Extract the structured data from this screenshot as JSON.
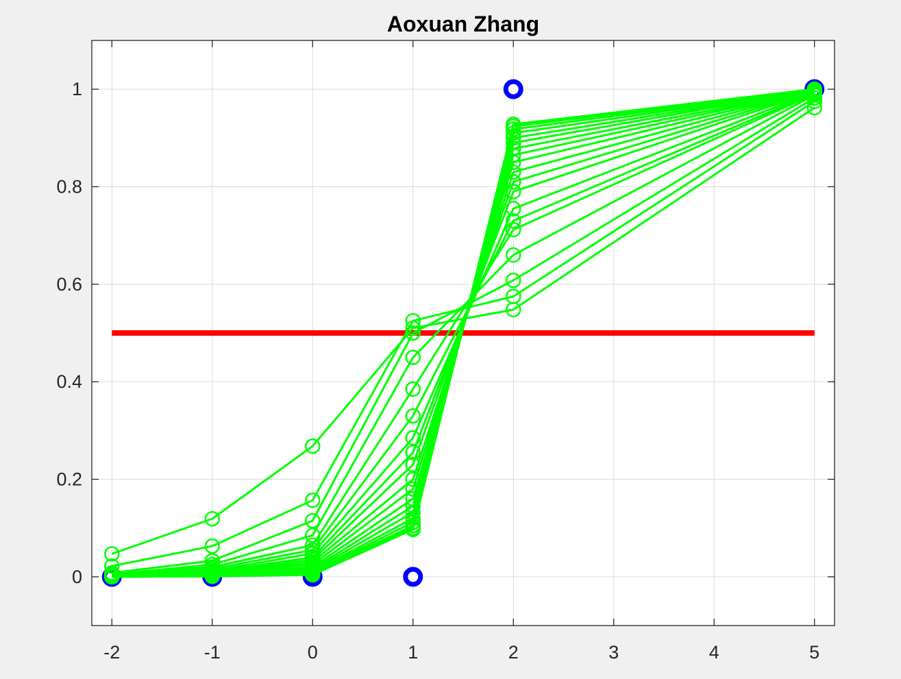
{
  "title": "Aoxuan Zhang",
  "chart_data": {
    "type": "line",
    "title": "Aoxuan Zhang",
    "xlabel": "",
    "ylabel": "",
    "xlim": [
      -2.2,
      5.2
    ],
    "ylim": [
      -0.1,
      1.1
    ],
    "grid": true,
    "x": [
      -2,
      -1,
      0,
      1,
      2,
      5
    ],
    "x_ticks": [
      "-2",
      "-1",
      "0",
      "1",
      "2",
      "3",
      "4",
      "5"
    ],
    "y_ticks": [
      "0",
      "0.2",
      "0.4",
      "0.6",
      "0.8",
      "1"
    ],
    "threshold": {
      "y": 0.5,
      "x_range": [
        -2,
        5
      ],
      "color": "#ff0000"
    },
    "targets": {
      "color": "#0000ff",
      "points": [
        [
          -2,
          0
        ],
        [
          -1,
          0
        ],
        [
          0,
          0
        ],
        [
          1,
          0
        ],
        [
          2,
          1
        ],
        [
          5,
          1
        ]
      ]
    },
    "series_color": "#00ff00",
    "series": [
      {
        "values": [
          0.047,
          0.119,
          0.268,
          0.51,
          0.548,
          0.962
        ]
      },
      {
        "values": [
          0.022,
          0.063,
          0.157,
          0.525,
          0.575,
          0.975
        ]
      },
      {
        "values": [
          0.008,
          0.033,
          0.115,
          0.5,
          0.608,
          0.982
        ]
      },
      {
        "values": [
          0.005,
          0.025,
          0.085,
          0.45,
          0.66,
          0.988
        ]
      },
      {
        "values": [
          0.004,
          0.02,
          0.065,
          0.385,
          0.712,
          0.99
        ]
      },
      {
        "values": [
          0.003,
          0.016,
          0.055,
          0.33,
          0.73,
          0.992
        ]
      },
      {
        "values": [
          0.002,
          0.012,
          0.048,
          0.285,
          0.755,
          0.994
        ]
      },
      {
        "values": [
          0.002,
          0.01,
          0.04,
          0.255,
          0.79,
          0.995
        ]
      },
      {
        "values": [
          0.001,
          0.008,
          0.035,
          0.23,
          0.81,
          0.996
        ]
      },
      {
        "values": [
          0.001,
          0.007,
          0.03,
          0.2,
          0.83,
          0.997
        ]
      },
      {
        "values": [
          0.001,
          0.006,
          0.025,
          0.18,
          0.85,
          0.997
        ]
      },
      {
        "values": [
          0.001,
          0.005,
          0.02,
          0.16,
          0.865,
          0.998
        ]
      },
      {
        "values": [
          0.001,
          0.004,
          0.016,
          0.145,
          0.878,
          0.998
        ]
      },
      {
        "values": [
          0.0,
          0.003,
          0.013,
          0.132,
          0.89,
          0.999
        ]
      },
      {
        "values": [
          0.0,
          0.003,
          0.01,
          0.12,
          0.9,
          0.999
        ]
      },
      {
        "values": [
          0.0,
          0.002,
          0.008,
          0.112,
          0.91,
          0.999
        ]
      },
      {
        "values": [
          0.0,
          0.002,
          0.006,
          0.105,
          0.918,
          0.999
        ]
      },
      {
        "values": [
          0.0,
          0.001,
          0.005,
          0.1,
          0.924,
          1.0
        ]
      },
      {
        "values": [
          0.0,
          0.001,
          0.004,
          0.097,
          0.928,
          1.0
        ]
      }
    ]
  }
}
